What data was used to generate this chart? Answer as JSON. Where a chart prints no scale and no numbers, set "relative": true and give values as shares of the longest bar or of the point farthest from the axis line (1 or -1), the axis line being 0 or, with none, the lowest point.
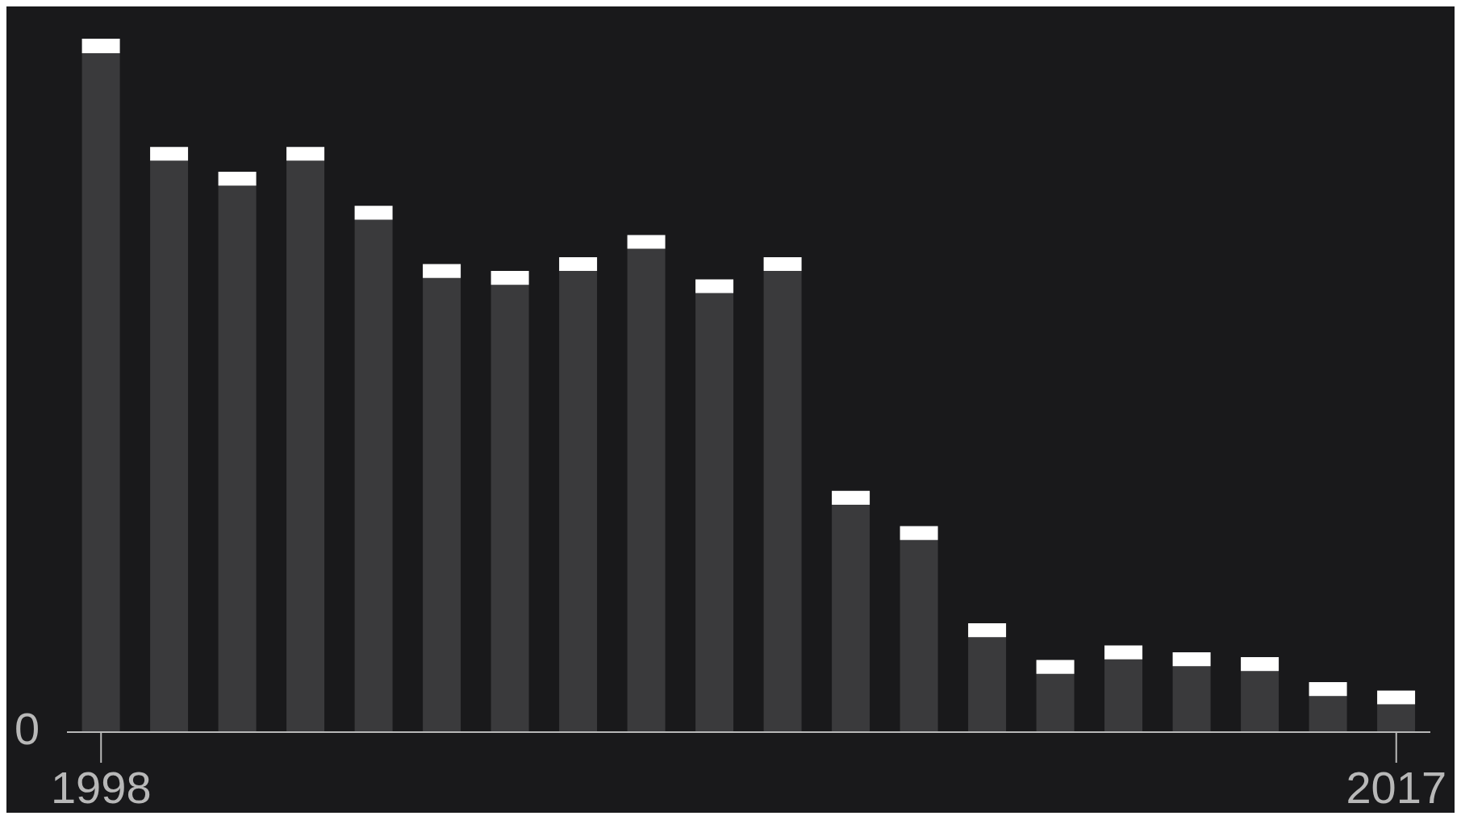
{
  "chart_data": {
    "type": "bar",
    "relative": true,
    "stacked": true,
    "categories": [
      "1998",
      null,
      null,
      null,
      null,
      null,
      null,
      null,
      null,
      null,
      null,
      null,
      null,
      null,
      null,
      null,
      null,
      null,
      null,
      "2017"
    ],
    "series": [
      {
        "color": "#3a3a3c",
        "values": [
          0.979,
          0.824,
          0.788,
          0.824,
          0.739,
          0.655,
          0.645,
          0.665,
          0.697,
          0.633,
          0.665,
          0.328,
          0.277,
          0.137,
          0.084,
          0.105,
          0.095,
          0.088,
          0.052,
          0.04
        ]
      },
      {
        "color": "#ffffff",
        "values": [
          0.021,
          0.02,
          0.02,
          0.02,
          0.02,
          0.02,
          0.02,
          0.02,
          0.02,
          0.02,
          0.02,
          0.02,
          0.02,
          0.02,
          0.02,
          0.02,
          0.02,
          0.02,
          0.02,
          0.02
        ]
      }
    ],
    "annotations": [
      "0"
    ],
    "grid": false,
    "legend": false
  }
}
